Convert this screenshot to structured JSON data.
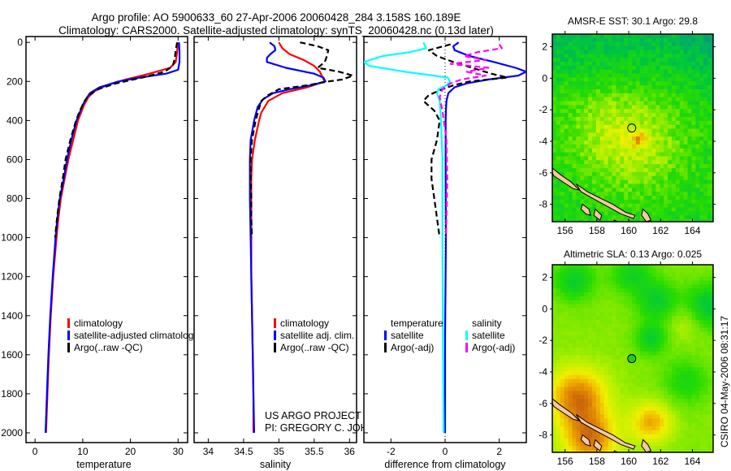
{
  "title": {
    "line1": "Argo profile: AO 5900633_60 27-Apr-2006 20060428_284 3.158S 160.189E",
    "line2": "Climatology: CARS2000. Satellite-adjusted climatology: synTS_20060428.nc (0.13d later)"
  },
  "credit": {
    "project": "US ARGO PROJECT",
    "pi": "PI: GREGORY C. JOHNSON",
    "stamp": "CSIRO 04-May-2006 08:31:17"
  },
  "colors": {
    "climatology": "#ff0000",
    "satellite": "#0000ff",
    "argo": "#000000",
    "salinity_satellite": "#00ffff",
    "salinity_argo": "#ff00ff",
    "land": "#f5c8a0"
  },
  "chart_data": [
    {
      "type": "line",
      "panel": "temperature",
      "xlabel": "temperature",
      "ylabel": "",
      "xlim": [
        -1.9,
        32
      ],
      "ylim": [
        2050,
        -30
      ],
      "y_reversed": true,
      "xticks": [
        0,
        10,
        20,
        30
      ],
      "xtick_labels": [
        "0",
        "10",
        "20",
        "30"
      ],
      "yticks": [
        0,
        200,
        400,
        600,
        800,
        1000,
        1200,
        1400,
        1600,
        1800,
        2000
      ],
      "ytick_labels": [
        "0",
        "200",
        "400",
        "600",
        "800",
        "1000",
        "1200",
        "1400",
        "1600",
        "1800",
        "2000"
      ],
      "legend": {
        "placement": "lower-center",
        "entries": [
          {
            "label": "climatology",
            "color": "#ff0000"
          },
          {
            "label": "satellite-adjusted climatology",
            "color": "#0000ff"
          },
          {
            "label": "Argo(..raw -QC)",
            "color": "#000000"
          }
        ]
      },
      "series": [
        {
          "name": "climatology",
          "color": "#ff0000",
          "dash": false,
          "pressure": [
            0,
            50,
            100,
            130,
            160,
            190,
            220,
            250,
            280,
            320,
            400,
            500,
            600,
            700,
            800,
            900,
            1000,
            1200,
            1400,
            1600,
            1800,
            2000
          ],
          "values": [
            29.9,
            29.8,
            29.5,
            28.3,
            24.0,
            19.0,
            15.0,
            12.5,
            11.2,
            10.3,
            9.0,
            8.0,
            7.0,
            6.2,
            5.4,
            4.9,
            4.5,
            3.8,
            3.3,
            2.9,
            2.6,
            2.3
          ]
        },
        {
          "name": "satellite-adjusted climatology",
          "color": "#0000ff",
          "dash": false,
          "pressure": [
            0,
            50,
            100,
            140,
            160,
            180,
            200,
            230,
            260,
            290,
            320,
            400,
            500,
            600,
            700,
            800,
            900,
            1000,
            1200,
            1400,
            1600,
            1800,
            2000
          ],
          "values": [
            30.2,
            30.3,
            30.3,
            30.0,
            27.5,
            22.0,
            17.5,
            13.5,
            11.5,
            10.7,
            10.0,
            8.7,
            7.6,
            6.7,
            6.0,
            5.2,
            4.7,
            4.3,
            3.7,
            3.2,
            2.8,
            2.5,
            2.2
          ]
        },
        {
          "name": "Argo(..raw -QC)",
          "color": "#000000",
          "dash": true,
          "pressure": [
            0,
            40,
            80,
            120,
            150,
            180,
            210,
            240,
            270,
            300,
            350,
            400,
            500,
            600,
            700,
            800,
            900,
            1000
          ],
          "values": [
            29.8,
            29.5,
            29.3,
            28.9,
            27.2,
            22.5,
            17.0,
            13.2,
            11.3,
            10.4,
            9.4,
            8.6,
            7.4,
            6.4,
            5.8,
            5.1,
            4.6,
            4.2
          ]
        }
      ]
    },
    {
      "type": "line",
      "panel": "salinity",
      "xlabel": "salinity",
      "xlim": [
        33.8,
        36.1
      ],
      "ylim": [
        2050,
        -30
      ],
      "y_reversed": true,
      "xticks": [
        34,
        34.5,
        35,
        35.5,
        36
      ],
      "xtick_labels": [
        "34",
        "34.5",
        "35",
        "35.5",
        "36"
      ],
      "legend": {
        "placement": "lower-right",
        "entries": [
          {
            "label": "climatology",
            "color": "#ff0000"
          },
          {
            "label": "satellite adj. clim.",
            "color": "#0000ff"
          },
          {
            "label": "Argo(..raw -QC)",
            "color": "#000000"
          }
        ]
      },
      "series": [
        {
          "name": "climatology",
          "color": "#ff0000",
          "dash": false,
          "pressure": [
            0,
            30,
            60,
            90,
            120,
            150,
            180,
            200,
            230,
            260,
            300,
            360,
            400,
            500,
            600,
            700,
            800,
            1000,
            1200,
            1400,
            1600,
            1800,
            2000
          ],
          "values": [
            35.0,
            35.05,
            35.15,
            35.35,
            35.5,
            35.58,
            35.62,
            35.65,
            35.4,
            35.05,
            34.85,
            34.75,
            34.72,
            34.66,
            34.62,
            34.61,
            34.61,
            34.61,
            34.61,
            34.62,
            34.63,
            34.64,
            34.64
          ]
        },
        {
          "name": "satellite adj. clim.",
          "color": "#0000ff",
          "dash": false,
          "pressure": [
            0,
            20,
            40,
            60,
            80,
            100,
            130,
            160,
            180,
            200,
            220,
            240,
            260,
            290,
            330,
            400,
            500,
            600,
            700,
            800,
            1000,
            1200,
            1400,
            1600,
            1800,
            2000
          ],
          "values": [
            34.87,
            34.94,
            34.95,
            34.88,
            34.83,
            34.83,
            35.1,
            35.5,
            35.63,
            35.66,
            35.45,
            35.15,
            34.92,
            34.78,
            34.7,
            34.65,
            34.6,
            34.59,
            34.59,
            34.59,
            34.6,
            34.61,
            34.62,
            34.63,
            34.64,
            34.65
          ]
        },
        {
          "name": "Argo(..raw -QC)",
          "color": "#000000",
          "dash": true,
          "pressure": [
            0,
            20,
            40,
            70,
            100,
            130,
            150,
            170,
            190,
            200,
            220,
            240,
            270,
            300,
            400,
            500,
            600,
            700,
            800,
            900,
            1000
          ],
          "values": [
            35.3,
            35.55,
            35.7,
            35.68,
            35.65,
            35.55,
            35.85,
            36.05,
            35.9,
            35.7,
            35.4,
            35.0,
            34.85,
            34.75,
            34.67,
            34.62,
            34.6,
            34.6,
            34.61,
            34.61,
            34.62
          ]
        }
      ]
    },
    {
      "type": "line",
      "panel": "difference",
      "xlabel": "difference from climatology",
      "xlim": [
        -3,
        3
      ],
      "ylim": [
        2050,
        -30
      ],
      "y_reversed": true,
      "xticks": [
        -2,
        0,
        2
      ],
      "xtick_labels": [
        "-2",
        "0",
        "2"
      ],
      "zero_line": "dotted",
      "legend": {
        "placement": "lower-center",
        "groups": [
          {
            "heading": "temperature",
            "entries": [
              {
                "label": "satellite",
                "color": "#0000ff"
              },
              {
                "label": "Argo(-adj)",
                "color": "#000000"
              }
            ]
          },
          {
            "heading": "salinity",
            "entries": [
              {
                "label": "satellite",
                "color": "#00ffff"
              },
              {
                "label": "Argo(-adj)",
                "color": "#ff00ff"
              }
            ]
          }
        ]
      },
      "series": [
        {
          "name": "temperature satellite",
          "color": "#0000ff",
          "dash": false,
          "pressure": [
            0,
            20,
            40,
            70,
            100,
            130,
            150,
            170,
            190,
            210,
            230,
            260,
            300,
            350,
            400,
            500,
            700,
            1000,
            1500,
            2000
          ],
          "values": [
            0.5,
            0.3,
            0.35,
            0.9,
            1.8,
            2.6,
            3.0,
            2.7,
            1.6,
            0.8,
            0.35,
            0.12,
            0.05,
            0.03,
            0.02,
            0.02,
            0.02,
            0.03,
            0.0,
            0.0
          ]
        },
        {
          "name": "temperature Argo(-adj)",
          "color": "#000000",
          "dash": true,
          "pressure": [
            10,
            40,
            70,
            100,
            130,
            160,
            180,
            200,
            220,
            240,
            270,
            300,
            350,
            400,
            500,
            600,
            700,
            800,
            900,
            1000
          ],
          "values": [
            0.2,
            -0.6,
            -0.3,
            0.3,
            1.0,
            1.7,
            2.3,
            0.9,
            0.3,
            -0.1,
            -0.6,
            -0.8,
            -0.4,
            -0.2,
            -0.3,
            -0.5,
            -0.5,
            -0.4,
            -0.3,
            -0.2
          ]
        },
        {
          "name": "salinity satellite",
          "color": "#00ffff",
          "dash": false,
          "pressure": [
            0,
            30,
            50,
            70,
            100,
            120,
            150,
            180,
            200,
            220,
            240,
            260,
            300,
            400,
            600,
            1000,
            1500,
            2000
          ],
          "values": [
            -0.8,
            -0.7,
            -1.3,
            -2.3,
            -3.0,
            -2.8,
            -1.5,
            0.1,
            0.18,
            0.05,
            -0.25,
            -0.3,
            -0.2,
            -0.15,
            -0.1,
            -0.1,
            -0.08,
            -0.05
          ]
        },
        {
          "name": "salinity Argo(-adj)",
          "color": "#ff00ff",
          "dash": true,
          "pressure": [
            10,
            30,
            50,
            70,
            90,
            110,
            130,
            150,
            170,
            190,
            210,
            240,
            280,
            350,
            500,
            700,
            900,
            1000
          ],
          "values": [
            2.0,
            2.1,
            1.2,
            0.7,
            1.5,
            0.2,
            1.6,
            0.8,
            1.5,
            0.6,
            0.2,
            -0.1,
            -0.2,
            -0.1,
            0.05,
            0.08,
            0.05,
            0.03
          ]
        }
      ]
    },
    {
      "type": "heatmap",
      "panel": "sst-map",
      "title": "AMSR-E SST: 30.1 Argo: 29.8",
      "xlim": [
        155.2,
        165.3
      ],
      "ylim": [
        -9.1,
        2.8
      ],
      "xticks": [
        156,
        158,
        160,
        162,
        164
      ],
      "xtick_labels": [
        "156",
        "158",
        "160",
        "162",
        "164"
      ],
      "yticks": [
        2,
        0,
        -2,
        -4,
        -6,
        -8
      ],
      "ytick_labels": [
        "2",
        "0",
        "-2",
        "-4",
        "-6",
        "-8"
      ],
      "argo_position": {
        "lon": 160.189,
        "lat": -3.158
      },
      "field_description": "green/teal cooler to the north and northeast, yellow-green warmer band around 2-6S, small orange anomaly near 160.5E 3.9S"
    },
    {
      "type": "heatmap",
      "panel": "sla-map",
      "title": "Altimetric SLA: 0.13 Argo: 0.025",
      "xlim": [
        155.2,
        165.3
      ],
      "ylim": [
        -9.1,
        2.8
      ],
      "xticks": [
        156,
        158,
        160,
        162,
        164
      ],
      "xtick_labels": [
        "156",
        "158",
        "160",
        "162",
        "164"
      ],
      "yticks": [
        2,
        0,
        -2,
        -4,
        -6,
        -8
      ],
      "ytick_labels": [
        "2",
        "0",
        "-2",
        "-4",
        "-6",
        "-8"
      ],
      "argo_position": {
        "lon": 160.189,
        "lat": -3.158
      },
      "field_description": "greens in north and east, yellows in center, orange/brown high SLA in southwest near 156-158E 5-9S and around 161.5E 7S"
    }
  ]
}
